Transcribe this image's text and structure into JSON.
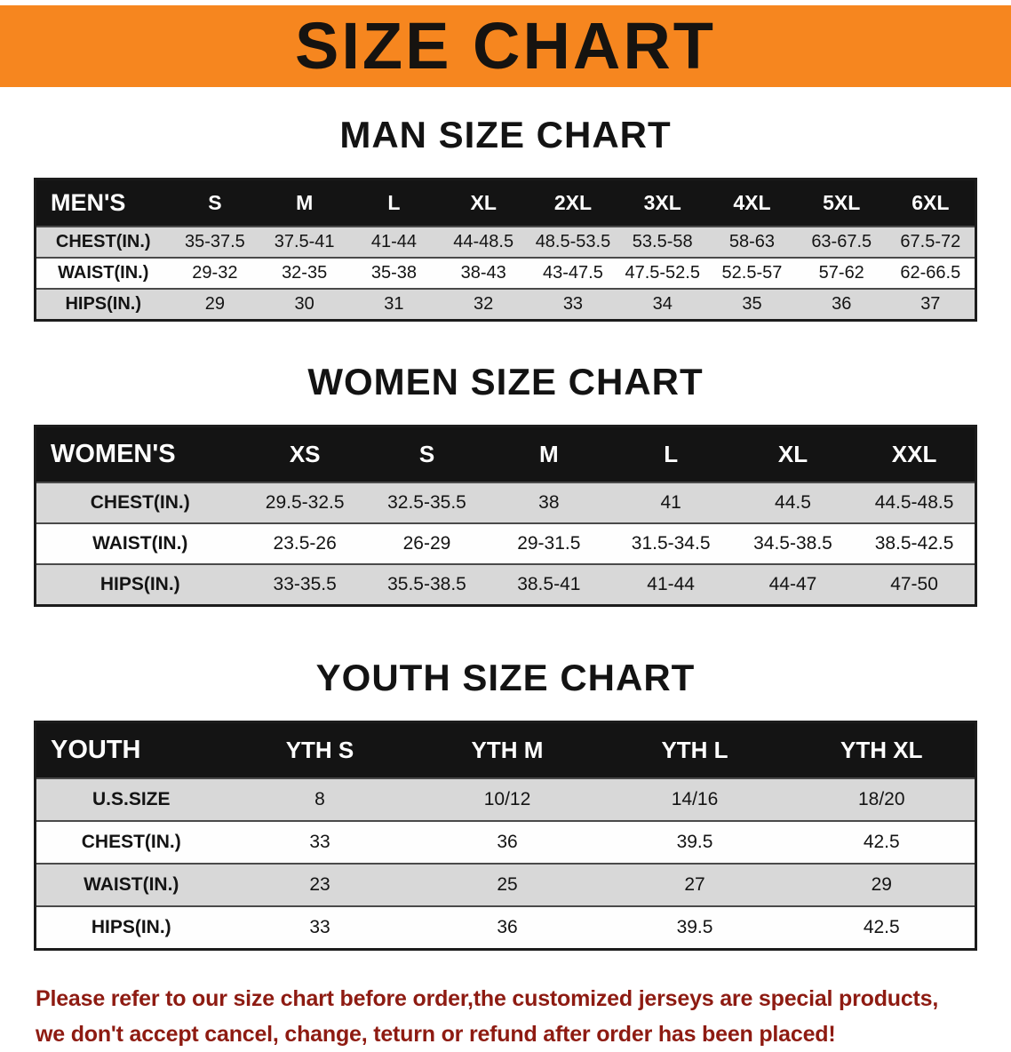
{
  "banner": {
    "title": "SIZE CHART"
  },
  "sections": {
    "men": {
      "heading": "MAN SIZE CHART",
      "table": {
        "label": "MEN'S",
        "columns": [
          "S",
          "M",
          "L",
          "XL",
          "2XL",
          "3XL",
          "4XL",
          "5XL",
          "6XL"
        ],
        "rows": [
          {
            "label": "CHEST(IN.)",
            "values": [
              "35-37.5",
              "37.5-41",
              "41-44",
              "44-48.5",
              "48.5-53.5",
              "53.5-58",
              "58-63",
              "63-67.5",
              "67.5-72"
            ]
          },
          {
            "label": "WAIST(IN.)",
            "values": [
              "29-32",
              "32-35",
              "35-38",
              "38-43",
              "43-47.5",
              "47.5-52.5",
              "52.5-57",
              "57-62",
              "62-66.5"
            ]
          },
          {
            "label": "HIPS(IN.)",
            "values": [
              "29",
              "30",
              "31",
              "32",
              "33",
              "34",
              "35",
              "36",
              "37"
            ]
          }
        ]
      }
    },
    "women": {
      "heading": "WOMEN SIZE CHART",
      "table": {
        "label": "WOMEN'S",
        "columns": [
          "XS",
          "S",
          "M",
          "L",
          "XL",
          "XXL"
        ],
        "rows": [
          {
            "label": "CHEST(IN.)",
            "values": [
              "29.5-32.5",
              "32.5-35.5",
              "38",
              "41",
              "44.5",
              "44.5-48.5"
            ]
          },
          {
            "label": "WAIST(IN.)",
            "values": [
              "23.5-26",
              "26-29",
              "29-31.5",
              "31.5-34.5",
              "34.5-38.5",
              "38.5-42.5"
            ]
          },
          {
            "label": "HIPS(IN.)",
            "values": [
              "33-35.5",
              "35.5-38.5",
              "38.5-41",
              "41-44",
              "44-47",
              "47-50"
            ]
          }
        ]
      }
    },
    "youth": {
      "heading": "YOUTH SIZE CHART",
      "table": {
        "label": "YOUTH",
        "columns": [
          "YTH S",
          "YTH M",
          "YTH L",
          "YTH XL"
        ],
        "rows": [
          {
            "label": "U.S.SIZE",
            "values": [
              "8",
              "10/12",
              "14/16",
              "18/20"
            ]
          },
          {
            "label": "CHEST(IN.)",
            "values": [
              "33",
              "36",
              "39.5",
              "42.5"
            ]
          },
          {
            "label": "WAIST(IN.)",
            "values": [
              "23",
              "25",
              "27",
              "29"
            ]
          },
          {
            "label": "HIPS(IN.)",
            "values": [
              "33",
              "36",
              "39.5",
              "42.5"
            ]
          }
        ]
      }
    }
  },
  "footer": {
    "line1": "Please refer to our size chart before order,the customized jerseys are special products,",
    "line2": "we don't accept cancel, change, teturn or refund after order has been placed!"
  },
  "colors": {
    "banner_bg": "#F6861F",
    "header_bg": "#141414",
    "stripe": "#d8d8d8",
    "notice_text": "#8e1b12"
  }
}
